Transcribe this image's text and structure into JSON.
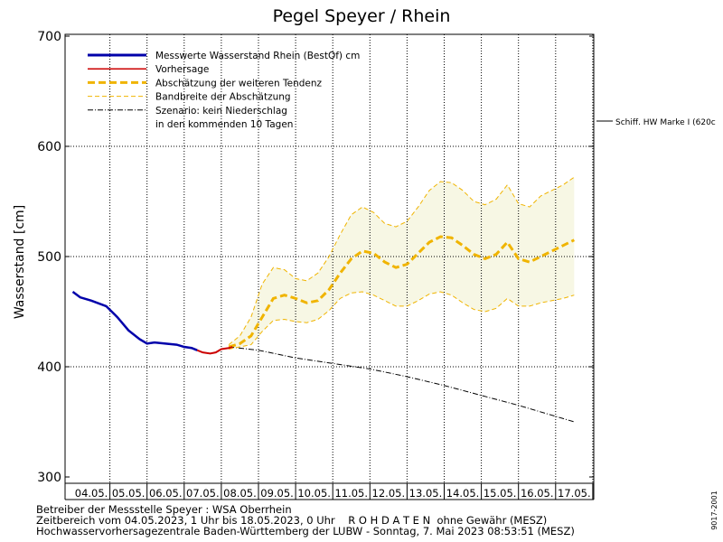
{
  "chart_data": {
    "type": "line",
    "title": "Pegel Speyer / Rhein",
    "ylabel": "Wasserstand [cm]",
    "ylim": [
      300,
      700
    ],
    "yticks": [
      300,
      400,
      500,
      600,
      700
    ],
    "xlim_days": [
      0,
      14.2
    ],
    "x_tick_labels": [
      "04.05.",
      "05.05.",
      "06.05.",
      "07.05.",
      "08.05.",
      "09.05.",
      "10.05.",
      "11.05.",
      "12.05.",
      "13.05.",
      "14.05.",
      "15.05.",
      "16.05.",
      "17.05."
    ],
    "grid": true,
    "legend_position": "top-left",
    "legend": [
      {
        "label": "Messwerte Wasserstand Rhein (BestOf)   cm",
        "color": "#0000aa",
        "style": "solid-thick"
      },
      {
        "label": "Vorhersage",
        "color": "#cc0000",
        "style": "solid"
      },
      {
        "label": "Abschätzung der weiteren Tendenz",
        "color": "#f0b400",
        "style": "dashed-thick"
      },
      {
        "label": "Bandbreite der Abschätzung",
        "color": "#f0b400",
        "style": "dashed-thin"
      },
      {
        "label": "Szenario: kein Niederschlag",
        "color": "#000000",
        "style": "dashdot"
      },
      {
        "label": "in den kommenden 10 Tagen",
        "color": "",
        "style": "none"
      }
    ],
    "reference_line": {
      "label": "Schiff. HW Marke I (620c",
      "value": 620
    },
    "series": [
      {
        "name": "Messwerte Wasserstand Rhein (BestOf)",
        "x": [
          0.0,
          0.2,
          0.5,
          0.9,
          1.2,
          1.5,
          1.8,
          2.0,
          2.2,
          2.5,
          2.8,
          3.0,
          3.2,
          3.35
        ],
        "y": [
          468,
          463,
          460,
          455,
          445,
          433,
          425,
          421,
          422,
          421,
          420,
          418,
          417,
          415
        ]
      },
      {
        "name": "Vorhersage",
        "x": [
          3.35,
          3.5,
          3.7,
          3.85,
          4.0,
          4.2,
          4.3
        ],
        "y": [
          415,
          413,
          412,
          413,
          416,
          417,
          418
        ]
      },
      {
        "name": "Abschätzung der weiteren Tendenz",
        "x": [
          4.2,
          4.5,
          4.8,
          5.1,
          5.4,
          5.7,
          6.0,
          6.3,
          6.6,
          6.9,
          7.2,
          7.5,
          7.8,
          8.1,
          8.4,
          8.7,
          9.0,
          9.3,
          9.6,
          9.9,
          10.2,
          10.5,
          10.8,
          11.1,
          11.4,
          11.7,
          12.0,
          12.3,
          12.6,
          12.9,
          13.2,
          13.5
        ],
        "y": [
          418,
          421,
          428,
          445,
          462,
          465,
          462,
          458,
          460,
          470,
          485,
          498,
          505,
          503,
          495,
          490,
          493,
          503,
          513,
          518,
          517,
          510,
          502,
          498,
          502,
          513,
          498,
          495,
          500,
          505,
          510,
          515
        ]
      },
      {
        "name": "Bandbreite oben",
        "x": [
          4.2,
          4.5,
          4.8,
          5.1,
          5.4,
          5.7,
          6.0,
          6.3,
          6.6,
          6.9,
          7.2,
          7.5,
          7.8,
          8.1,
          8.4,
          8.7,
          9.0,
          9.3,
          9.6,
          9.9,
          10.2,
          10.5,
          10.8,
          11.1,
          11.4,
          11.7,
          12.0,
          12.3,
          12.6,
          12.9,
          13.2,
          13.5
        ],
        "y": [
          420,
          428,
          445,
          475,
          490,
          488,
          480,
          478,
          485,
          500,
          520,
          538,
          545,
          540,
          530,
          527,
          532,
          545,
          560,
          568,
          567,
          560,
          550,
          547,
          552,
          565,
          548,
          545,
          555,
          560,
          565,
          572
        ]
      },
      {
        "name": "Bandbreite unten",
        "x": [
          4.2,
          4.5,
          4.8,
          5.1,
          5.4,
          5.7,
          6.0,
          6.3,
          6.6,
          6.9,
          7.2,
          7.5,
          7.8,
          8.1,
          8.4,
          8.7,
          9.0,
          9.3,
          9.6,
          9.9,
          10.2,
          10.5,
          10.8,
          11.1,
          11.4,
          11.7,
          12.0,
          12.3,
          12.6,
          12.9,
          13.2,
          13.5
        ],
        "y": [
          416,
          418,
          420,
          432,
          442,
          443,
          441,
          440,
          443,
          451,
          462,
          467,
          468,
          465,
          460,
          455,
          455,
          460,
          466,
          468,
          465,
          458,
          452,
          450,
          453,
          462,
          455,
          455,
          458,
          460,
          462,
          465
        ]
      },
      {
        "name": "Szenario: kein Niederschlag",
        "x": [
          4.2,
          5.0,
          6.0,
          7.0,
          8.0,
          9.0,
          10.0,
          11.0,
          12.0,
          13.0,
          13.5
        ],
        "y": [
          418,
          415,
          408,
          403,
          398,
          391,
          383,
          374,
          365,
          355,
          350
        ]
      }
    ]
  },
  "footer": {
    "line1": "Betreiber der Messstelle Speyer : WSA Oberrhein",
    "line2": "Zeitbereich vom 04.05.2023, 1 Uhr bis 18.05.2023, 0 Uhr    R O H D A T E N  ohne Gewähr (MESZ)",
    "line3": "Hochwasservorhersagezentrale Baden-Württemberg der LUBW - Sonntag, 7. Mai 2023 08:53:51 (MESZ)"
  },
  "side_code": "9017-2001",
  "colors": {
    "measured": "#0000aa",
    "forecast": "#cc0000",
    "tendency": "#f0b400",
    "band_fill": "#f7f7e4",
    "scenario": "#000000"
  }
}
